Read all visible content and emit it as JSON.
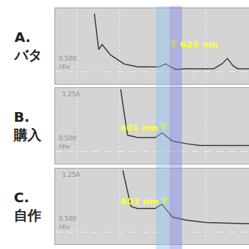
{
  "chart_data": [
    {
      "type": "line",
      "title": "A.\nバタ",
      "x": [
        441,
        451,
        459,
        478,
        510,
        542,
        590,
        606,
        619,
        630,
        654,
        718,
        737,
        750,
        763,
        774,
        800
      ],
      "values": [
        1.16,
        0.57,
        0.65,
        0.48,
        0.33,
        0.28,
        0.28,
        0.33,
        0.28,
        0.24,
        0.25,
        0.25,
        0.33,
        0.42,
        0.3,
        0.25,
        0.25
      ],
      "xlim": [
        350,
        800
      ],
      "ylim": [
        0,
        1.25
      ],
      "xticks": [
        400,
        500,
        600,
        700
      ],
      "yticks": [
        0.2
      ],
      "grid": true,
      "tick_labels": false,
      "color": "#333333",
      "peak": {
        "text": "625 nm",
        "x": 625
      },
      "scale_label": "0.500\n/div"
    },
    {
      "type": "line",
      "title": "B.\n購入",
      "x": [
        502,
        518,
        542,
        582,
        598,
        622,
        654,
        686,
        800
      ],
      "values": [
        1.23,
        0.47,
        0.43,
        0.43,
        0.51,
        0.375,
        0.33,
        0.3,
        0.3
      ],
      "xlim": [
        350,
        800
      ],
      "ylim": [
        0,
        1.25
      ],
      "xticks": [
        400,
        500,
        600,
        700
      ],
      "yticks": [
        0.2
      ],
      "grid": true,
      "tick_labels": false,
      "color": "#333333",
      "peak": {
        "text": "601 nm",
        "x": 601
      },
      "range_label": "1.25A",
      "scale_label": "0.500\n/div"
    },
    {
      "type": "line",
      "title": "C.\n自作",
      "x": [
        507,
        526,
        542,
        582,
        598,
        622,
        654,
        700,
        800
      ],
      "values": [
        1.22,
        0.625,
        0.59,
        0.59,
        0.66,
        0.45,
        0.4,
        0.36,
        0.34
      ],
      "xlim": [
        350,
        800
      ],
      "ylim": [
        0,
        1.25
      ],
      "xticks": [
        400,
        500,
        600,
        700
      ],
      "yticks": [
        0.2
      ],
      "grid": true,
      "tick_labels": false,
      "color": "#333333",
      "peak": {
        "text": "603 nm",
        "x": 603
      },
      "range_label": "1.25A",
      "scale_label": "0.500\n/div"
    }
  ]
}
